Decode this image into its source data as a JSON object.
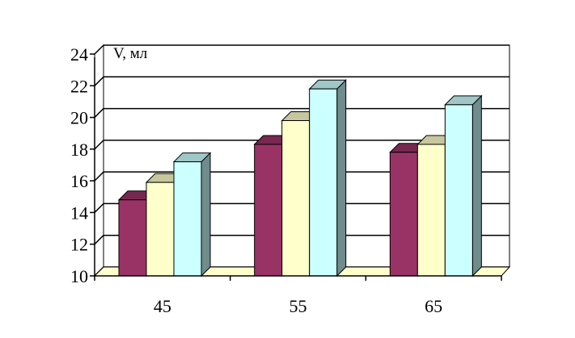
{
  "chart_data": {
    "type": "bar",
    "title": "",
    "xlabel": "",
    "ylabel": "V, мл",
    "categories": [
      "45",
      "55",
      "65"
    ],
    "series": [
      {
        "values": [
          14.8,
          18.3,
          17.8
        ],
        "color": "#993366"
      },
      {
        "values": [
          15.9,
          19.8,
          18.3
        ],
        "color": "#FFFFCC"
      },
      {
        "values": [
          17.2,
          21.8,
          20.8
        ],
        "color": "#CCFFFF"
      }
    ],
    "ylim": [
      10,
      24
    ],
    "yticks": [
      "10",
      "12",
      "14",
      "16",
      "18",
      "20",
      "22",
      "24"
    ],
    "grid": true,
    "legend": "none",
    "three_d": true
  }
}
